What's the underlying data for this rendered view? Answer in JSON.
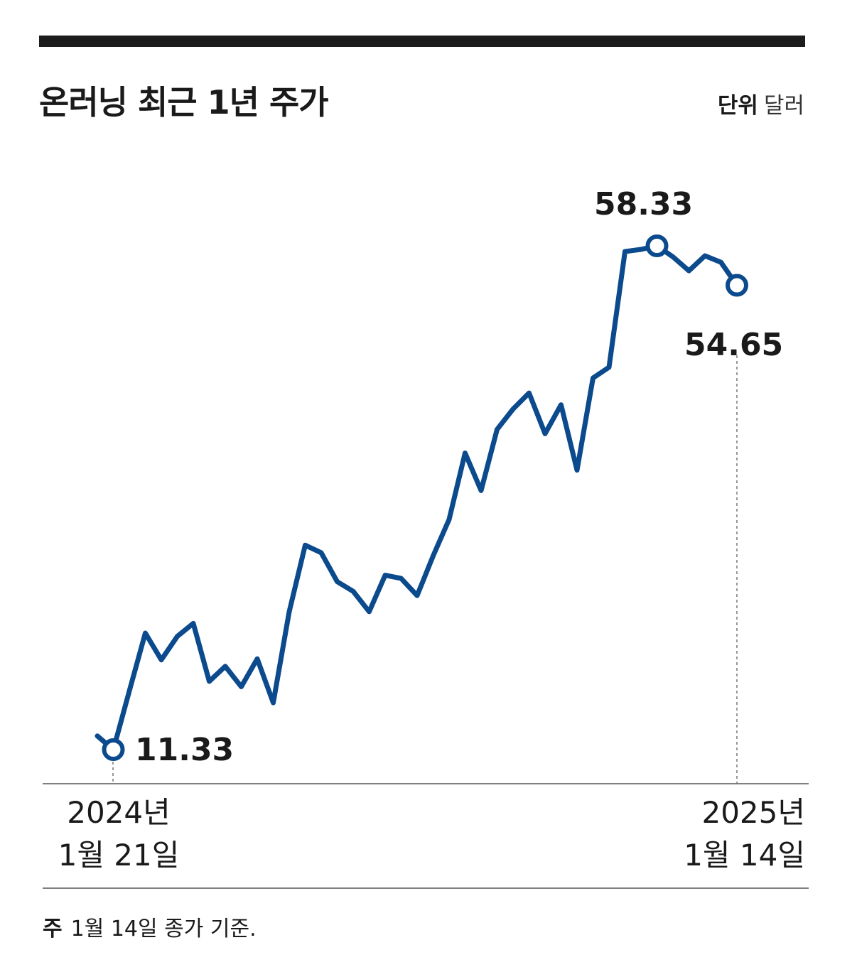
{
  "title": "온러닝 최근 1년 주가",
  "unit": {
    "label": "단위",
    "value": "달러"
  },
  "footnote": {
    "label": "주",
    "text": "1월 14일 종가 기준."
  },
  "colors": {
    "line": "#0b4a8c",
    "text": "#1a1a1a",
    "rule": "#1c1c1c"
  },
  "chart_data": {
    "type": "line",
    "title": "온러닝 최근 1년 주가",
    "xlabel": "",
    "ylabel": "",
    "unit": "달러",
    "ylim": [
      11.33,
      58.33
    ],
    "x_tick_labels": [
      {
        "line1": "2024년",
        "line2": "1월 21일"
      },
      {
        "line1": "2025년",
        "line2": "1월 14일"
      }
    ],
    "highlight": [
      {
        "label": "11.33",
        "value": 11.33
      },
      {
        "label": "58.33",
        "value": 58.33
      },
      {
        "label": "54.65",
        "value": 54.65
      }
    ],
    "series": [
      {
        "values": [
          12.6,
          11.33,
          16.8,
          22.2,
          19.7,
          21.9,
          23.1,
          17.7,
          19.1,
          17.2,
          19.8,
          15.7,
          24.2,
          30.4,
          29.7,
          27.0,
          26.1,
          24.2,
          27.6,
          27.3,
          25.7,
          29.4,
          32.8,
          39.0,
          35.5,
          41.2,
          43.1,
          44.6,
          40.8,
          43.5,
          37.4,
          46.0,
          47.0,
          57.8,
          58.0,
          58.33,
          57.3,
          56.0,
          57.4,
          56.8,
          54.65
        ]
      }
    ]
  }
}
